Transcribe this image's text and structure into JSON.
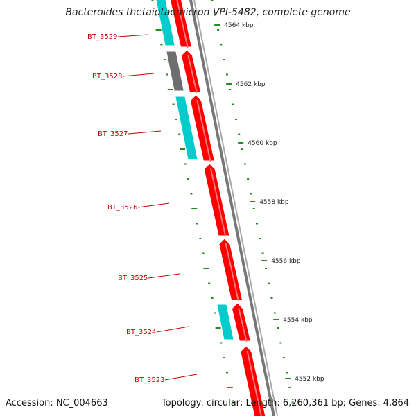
{
  "title": "Bacteroides thetaiotaomicron VPI-5482, complete genome",
  "accession": "Accession: NC_004663",
  "summary": "Topology: circular; Length: 6,260,361 bp; Genes: 4,864",
  "colors": {
    "forward_cds": "#ff0000",
    "cog_cyan": "#00cccc",
    "cog_gray": "#6e6e6e",
    "backbone": "#777777",
    "ticks": "#228b22",
    "gene_label": "#cc0000",
    "position_label": "#222222"
  },
  "position_labels": [
    {
      "text": "4564 kbp"
    },
    {
      "text": "4562 kbp"
    },
    {
      "text": "4560 kbp"
    },
    {
      "text": "4558 kbp"
    },
    {
      "text": "4556 kbp"
    },
    {
      "text": "4554 kbp"
    },
    {
      "text": "4552 kbp"
    }
  ],
  "genes": [
    {
      "label": "BT_3529",
      "cog": "cyan"
    },
    {
      "label": "BT_3528",
      "cog": "gray"
    },
    {
      "label": "BT_3527",
      "cog": "cyan"
    },
    {
      "label": "BT_3526",
      "cog": "none"
    },
    {
      "label": "BT_3525",
      "cog": "none"
    },
    {
      "label": "BT_3524",
      "cog": "cyan"
    },
    {
      "label": "BT_3523",
      "cog": "none"
    }
  ]
}
